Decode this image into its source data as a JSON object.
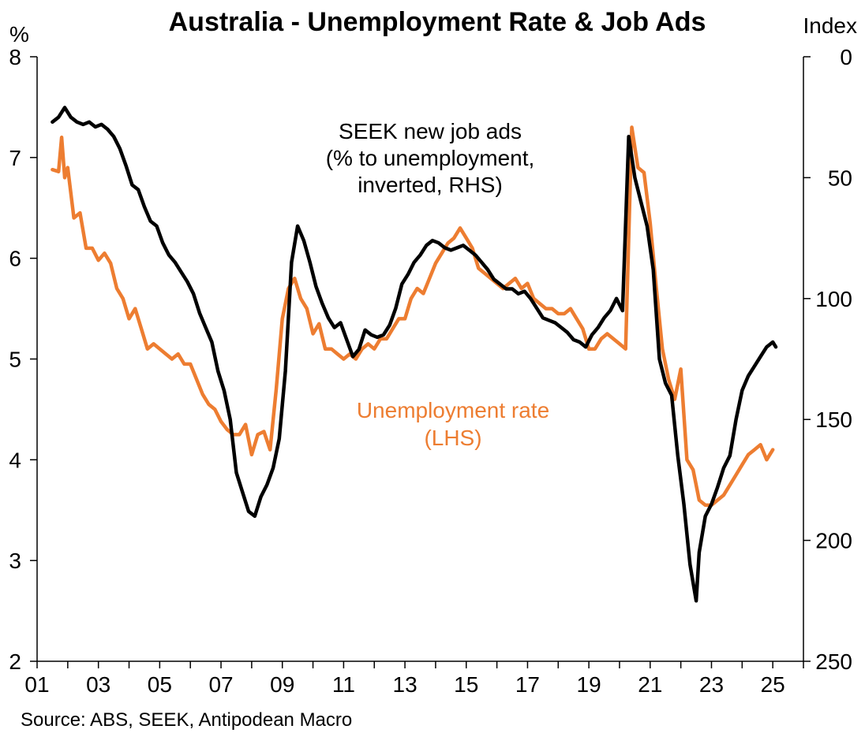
{
  "chart_data": {
    "type": "line",
    "title": "Australia - Unemployment Rate & Job Ads",
    "left_axis": {
      "unit": "%",
      "ylim": [
        2,
        8
      ],
      "ticks": [
        "2",
        "3",
        "4",
        "5",
        "6",
        "7",
        "8"
      ]
    },
    "right_axis": {
      "unit": "Index",
      "ylim": [
        0,
        250
      ],
      "inverted": true,
      "ticks": [
        "0",
        "50",
        "100",
        "150",
        "200",
        "250"
      ]
    },
    "x_axis": {
      "xlim": [
        2001,
        2026
      ],
      "ticks": [
        "01",
        "03",
        "05",
        "07",
        "09",
        "11",
        "13",
        "15",
        "17",
        "19",
        "21",
        "23",
        "25"
      ],
      "tick_years": [
        2001,
        2003,
        2005,
        2007,
        2009,
        2011,
        2013,
        2015,
        2017,
        2019,
        2021,
        2023,
        2025
      ]
    },
    "annotations": {
      "job_ads": [
        "SEEK new job ads",
        "(% to unemployment,",
        "inverted, RHS)"
      ],
      "unemployment": [
        "Unemployment rate",
        "(LHS)"
      ]
    },
    "colors": {
      "job_ads": "#000000",
      "unemployment": "#ED7D31"
    },
    "series": [
      {
        "key": "unemployment",
        "axis": "left",
        "x": [
          2001.5,
          2001.7,
          2001.8,
          2001.9,
          2002.0,
          2002.2,
          2002.4,
          2002.6,
          2002.8,
          2003.0,
          2003.2,
          2003.4,
          2003.6,
          2003.8,
          2004.0,
          2004.2,
          2004.4,
          2004.6,
          2004.8,
          2005.0,
          2005.2,
          2005.4,
          2005.6,
          2005.8,
          2006.0,
          2006.2,
          2006.4,
          2006.6,
          2006.8,
          2007.0,
          2007.2,
          2007.4,
          2007.6,
          2007.8,
          2008.0,
          2008.2,
          2008.4,
          2008.6,
          2008.8,
          2009.0,
          2009.2,
          2009.4,
          2009.6,
          2009.8,
          2010.0,
          2010.2,
          2010.4,
          2010.6,
          2010.8,
          2011.0,
          2011.2,
          2011.4,
          2011.6,
          2011.8,
          2012.0,
          2012.2,
          2012.4,
          2012.6,
          2012.8,
          2013.0,
          2013.2,
          2013.4,
          2013.6,
          2013.8,
          2014.0,
          2014.2,
          2014.4,
          2014.6,
          2014.8,
          2015.0,
          2015.2,
          2015.4,
          2015.6,
          2015.8,
          2016.0,
          2016.2,
          2016.4,
          2016.6,
          2016.8,
          2017.0,
          2017.2,
          2017.4,
          2017.6,
          2017.8,
          2018.0,
          2018.2,
          2018.4,
          2018.6,
          2018.8,
          2019.0,
          2019.2,
          2019.4,
          2019.6,
          2019.8,
          2020.0,
          2020.2,
          2020.4,
          2020.6,
          2020.8,
          2021.0,
          2021.2,
          2021.4,
          2021.6,
          2021.8,
          2022.0,
          2022.2,
          2022.4,
          2022.6,
          2022.8,
          2023.0,
          2023.2,
          2023.4,
          2023.6,
          2023.8,
          2024.0,
          2024.2,
          2024.4,
          2024.6,
          2024.8,
          2025.0
        ],
        "values": [
          6.88,
          6.86,
          7.2,
          6.8,
          6.9,
          6.4,
          6.45,
          6.1,
          6.1,
          5.98,
          6.05,
          5.95,
          5.7,
          5.6,
          5.4,
          5.5,
          5.3,
          5.1,
          5.15,
          5.1,
          5.05,
          5.0,
          5.05,
          4.95,
          4.95,
          4.8,
          4.65,
          4.55,
          4.5,
          4.38,
          4.3,
          4.25,
          4.25,
          4.35,
          4.05,
          4.25,
          4.28,
          4.1,
          4.7,
          5.4,
          5.7,
          5.8,
          5.6,
          5.5,
          5.25,
          5.35,
          5.1,
          5.1,
          5.05,
          5.0,
          5.05,
          5.0,
          5.1,
          5.15,
          5.1,
          5.2,
          5.2,
          5.3,
          5.4,
          5.4,
          5.6,
          5.7,
          5.65,
          5.8,
          5.95,
          6.05,
          6.15,
          6.2,
          6.3,
          6.2,
          6.1,
          5.9,
          5.85,
          5.8,
          5.75,
          5.7,
          5.75,
          5.8,
          5.7,
          5.75,
          5.6,
          5.55,
          5.5,
          5.5,
          5.45,
          5.45,
          5.5,
          5.4,
          5.3,
          5.1,
          5.1,
          5.2,
          5.25,
          5.2,
          5.15,
          5.1,
          7.3,
          6.9,
          6.85,
          6.35,
          5.7,
          5.1,
          4.8,
          4.6,
          4.9,
          4.0,
          3.9,
          3.6,
          3.55,
          3.55,
          3.6,
          3.65,
          3.75,
          3.85,
          3.95,
          4.05,
          4.1,
          4.15,
          4.0,
          4.1
        ]
      },
      {
        "key": "job_ads",
        "axis": "right",
        "x": [
          2001.5,
          2001.7,
          2001.9,
          2002.1,
          2002.3,
          2002.5,
          2002.7,
          2002.9,
          2003.1,
          2003.3,
          2003.5,
          2003.7,
          2003.9,
          2004.1,
          2004.3,
          2004.5,
          2004.7,
          2004.9,
          2005.1,
          2005.3,
          2005.5,
          2005.7,
          2005.9,
          2006.1,
          2006.3,
          2006.5,
          2006.7,
          2006.9,
          2007.1,
          2007.3,
          2007.5,
          2007.7,
          2007.9,
          2008.1,
          2008.3,
          2008.5,
          2008.7,
          2008.9,
          2009.1,
          2009.3,
          2009.5,
          2009.7,
          2009.9,
          2010.1,
          2010.3,
          2010.5,
          2010.7,
          2010.9,
          2011.1,
          2011.3,
          2011.5,
          2011.7,
          2011.9,
          2012.1,
          2012.3,
          2012.5,
          2012.7,
          2012.9,
          2013.1,
          2013.3,
          2013.5,
          2013.7,
          2013.9,
          2014.1,
          2014.3,
          2014.5,
          2014.7,
          2014.9,
          2015.1,
          2015.3,
          2015.5,
          2015.7,
          2015.9,
          2016.1,
          2016.3,
          2016.5,
          2016.7,
          2016.9,
          2017.1,
          2017.3,
          2017.5,
          2017.7,
          2017.9,
          2018.1,
          2018.3,
          2018.5,
          2018.7,
          2018.9,
          2019.1,
          2019.3,
          2019.5,
          2019.7,
          2019.9,
          2020.1,
          2020.3,
          2020.5,
          2020.7,
          2020.9,
          2021.1,
          2021.3,
          2021.5,
          2021.7,
          2021.9,
          2022.1,
          2022.3,
          2022.5,
          2022.6,
          2022.8,
          2023.0,
          2023.2,
          2023.4,
          2023.6,
          2023.8,
          2024.0,
          2024.2,
          2024.4,
          2024.6,
          2024.8,
          2025.0,
          2025.1
        ],
        "values": [
          27,
          25,
          21,
          25,
          27,
          28,
          27,
          29,
          28,
          30,
          33,
          38,
          45,
          53,
          55,
          62,
          68,
          70,
          77,
          82,
          85,
          89,
          93,
          98,
          106,
          112,
          118,
          130,
          138,
          150,
          172,
          180,
          188,
          190,
          182,
          177,
          170,
          158,
          130,
          85,
          70,
          76,
          85,
          95,
          102,
          108,
          112,
          110,
          117,
          124,
          121,
          113,
          115,
          116,
          115,
          111,
          104,
          94,
          90,
          85,
          82,
          78,
          76,
          77,
          79,
          80,
          79,
          78,
          80,
          82,
          85,
          88,
          92,
          94,
          96,
          96,
          98,
          97,
          100,
          104,
          108,
          109,
          110,
          112,
          114,
          117,
          118,
          120,
          115,
          112,
          108,
          105,
          100,
          105,
          33,
          50,
          60,
          70,
          88,
          125,
          135,
          140,
          165,
          185,
          210,
          225,
          205,
          190,
          185,
          178,
          170,
          165,
          150,
          138,
          132,
          128,
          124,
          120,
          118,
          120
        ]
      }
    ],
    "source": "Source: ABS, SEEK, Antipodean Macro"
  }
}
